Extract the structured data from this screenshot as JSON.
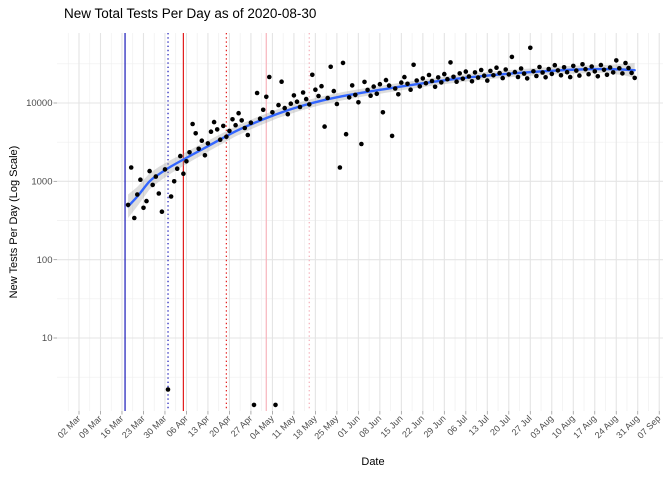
{
  "chart_data": {
    "type": "scatter",
    "title": "New Total Tests Per Day as of 2020-08-30",
    "xlabel": "Date",
    "ylabel": "New Tests Per Day (Log Scale)",
    "y_scale": "log",
    "grid": "on",
    "legend": "none",
    "colors": {
      "point": "#000000",
      "smooth_line": "#3366FF",
      "ribbon": "#9E9E9E",
      "grid_major": "#E4E4E4",
      "grid_minor": "#EFEFEF",
      "tick_mark": "#9B9B9B",
      "axis_text": "#4D4D4D",
      "title_text": "#000000"
    },
    "y_ticks": [
      {
        "label": "10",
        "value": 10
      },
      {
        "label": "100",
        "value": 100
      },
      {
        "label": "1000",
        "value": 1000
      },
      {
        "label": "10000",
        "value": 10000
      }
    ],
    "y_minor_values": [
      3.162,
      31.62,
      316.2,
      3162,
      31623
    ],
    "x_ticks": [
      {
        "label": "02 Mar",
        "date": "2020-03-02"
      },
      {
        "label": "09 Mar",
        "date": "2020-03-09"
      },
      {
        "label": "16 Mar",
        "date": "2020-03-16"
      },
      {
        "label": "23 Mar",
        "date": "2020-03-23"
      },
      {
        "label": "30 Mar",
        "date": "2020-03-30"
      },
      {
        "label": "06 Apr",
        "date": "2020-04-06"
      },
      {
        "label": "13 Apr",
        "date": "2020-04-13"
      },
      {
        "label": "20 Apr",
        "date": "2020-04-20"
      },
      {
        "label": "27 Apr",
        "date": "2020-04-27"
      },
      {
        "label": "04 May",
        "date": "2020-05-04"
      },
      {
        "label": "11 May",
        "date": "2020-05-11"
      },
      {
        "label": "18 May",
        "date": "2020-05-18"
      },
      {
        "label": "25 May",
        "date": "2020-05-25"
      },
      {
        "label": "01 Jun",
        "date": "2020-06-01"
      },
      {
        "label": "08 Jun",
        "date": "2020-06-08"
      },
      {
        "label": "15 Jun",
        "date": "2020-06-15"
      },
      {
        "label": "22 Jun",
        "date": "2020-06-22"
      },
      {
        "label": "29 Jun",
        "date": "2020-06-29"
      },
      {
        "label": "06 Jul",
        "date": "2020-07-06"
      },
      {
        "label": "13 Jul",
        "date": "2020-07-13"
      },
      {
        "label": "20 Jul",
        "date": "2020-07-20"
      },
      {
        "label": "27 Jul",
        "date": "2020-07-27"
      },
      {
        "label": "03 Aug",
        "date": "2020-08-03"
      },
      {
        "label": "10 Aug",
        "date": "2020-08-10"
      },
      {
        "label": "17 Aug",
        "date": "2020-08-17"
      },
      {
        "label": "24 Aug",
        "date": "2020-08-24"
      },
      {
        "label": "31 Aug",
        "date": "2020-08-31"
      },
      {
        "label": "07 Sep",
        "date": "2020-09-07"
      }
    ],
    "vlines": [
      {
        "date": "2020-03-17",
        "style": "solid",
        "color": "#1A1AB8"
      },
      {
        "date": "2020-03-31",
        "style": "dotted",
        "color": "#1A1AB8"
      },
      {
        "date": "2020-04-05",
        "style": "solid",
        "color": "#E21B1B"
      },
      {
        "date": "2020-04-19",
        "style": "dotted",
        "color": "#E21B1B"
      },
      {
        "date": "2020-05-02",
        "style": "solid",
        "color": "#F7B3BC"
      },
      {
        "date": "2020-05-16",
        "style": "dotted",
        "color": "#F4AEB8"
      }
    ],
    "smooth": {
      "dates": [
        "2020-03-18",
        "2020-03-21",
        "2020-03-25",
        "2020-03-28",
        "2020-04-01",
        "2020-04-08",
        "2020-04-15",
        "2020-04-22",
        "2020-04-29",
        "2020-05-06",
        "2020-05-13",
        "2020-05-20",
        "2020-05-27",
        "2020-06-03",
        "2020-06-10",
        "2020-06-17",
        "2020-06-24",
        "2020-07-01",
        "2020-07-08",
        "2020-07-15",
        "2020-07-22",
        "2020-07-29",
        "2020-08-05",
        "2020-08-12",
        "2020-08-19",
        "2020-08-26",
        "2020-08-30"
      ],
      "fit": [
        480,
        640,
        1000,
        1230,
        1550,
        2200,
        3100,
        4350,
        5750,
        7350,
        9050,
        10700,
        12250,
        13700,
        15150,
        16700,
        18300,
        19900,
        21400,
        22750,
        24000,
        25100,
        26100,
        26800,
        27100,
        26800,
        26200
      ],
      "lower": [
        340,
        480,
        790,
        990,
        1270,
        1850,
        2650,
        3750,
        5000,
        6450,
        7950,
        9450,
        10850,
        12200,
        13500,
        14900,
        16350,
        17800,
        19150,
        20400,
        21550,
        22500,
        23300,
        23800,
        24200,
        22800,
        21000
      ],
      "upper": [
        680,
        850,
        1270,
        1530,
        1890,
        2620,
        3630,
        5050,
        6600,
        8400,
        10300,
        12100,
        13800,
        15400,
        17000,
        18700,
        20500,
        22250,
        23900,
        25350,
        26700,
        28000,
        29200,
        30100,
        30300,
        31500,
        32500
      ]
    },
    "points": [
      [
        "2020-03-18",
        500
      ],
      [
        "2020-03-19",
        1500
      ],
      [
        "2020-03-20",
        340
      ],
      [
        "2020-03-21",
        680
      ],
      [
        "2020-03-22",
        1050
      ],
      [
        "2020-03-23",
        460
      ],
      [
        "2020-03-24",
        560
      ],
      [
        "2020-03-25",
        1350
      ],
      [
        "2020-03-26",
        900
      ],
      [
        "2020-03-27",
        1150
      ],
      [
        "2020-03-28",
        700
      ],
      [
        "2020-03-29",
        410
      ],
      [
        "2020-03-30",
        1420
      ],
      [
        "2020-03-31",
        2.2
      ],
      [
        "2020-04-01",
        640
      ],
      [
        "2020-04-02",
        1000
      ],
      [
        "2020-04-03",
        1450
      ],
      [
        "2020-04-04",
        2100
      ],
      [
        "2020-04-05",
        1250
      ],
      [
        "2020-04-06",
        1800
      ],
      [
        "2020-04-07",
        2350
      ],
      [
        "2020-04-08",
        5400
      ],
      [
        "2020-04-09",
        4100
      ],
      [
        "2020-04-10",
        2600
      ],
      [
        "2020-04-11",
        3300
      ],
      [
        "2020-04-12",
        2150
      ],
      [
        "2020-04-13",
        3050
      ],
      [
        "2020-04-14",
        4300
      ],
      [
        "2020-04-15",
        5700
      ],
      [
        "2020-04-16",
        4600
      ],
      [
        "2020-04-17",
        3400
      ],
      [
        "2020-04-18",
        5100
      ],
      [
        "2020-04-19",
        3700
      ],
      [
        "2020-04-20",
        4400
      ],
      [
        "2020-04-21",
        6200
      ],
      [
        "2020-04-22",
        5200
      ],
      [
        "2020-04-23",
        7400
      ],
      [
        "2020-04-24",
        6000
      ],
      [
        "2020-04-25",
        4800
      ],
      [
        "2020-04-26",
        3900
      ],
      [
        "2020-04-27",
        5600
      ],
      [
        "2020-04-28",
        1.4
      ],
      [
        "2020-04-29",
        13400
      ],
      [
        "2020-04-30",
        6300
      ],
      [
        "2020-05-01",
        8200
      ],
      [
        "2020-05-02",
        12000
      ],
      [
        "2020-05-03",
        21500
      ],
      [
        "2020-05-04",
        7600
      ],
      [
        "2020-05-05",
        1.4
      ],
      [
        "2020-05-06",
        9400
      ],
      [
        "2020-05-07",
        18700
      ],
      [
        "2020-05-08",
        8600
      ],
      [
        "2020-05-09",
        7200
      ],
      [
        "2020-05-10",
        9800
      ],
      [
        "2020-05-11",
        12500
      ],
      [
        "2020-05-12",
        10400
      ],
      [
        "2020-05-13",
        8900
      ],
      [
        "2020-05-14",
        13600
      ],
      [
        "2020-05-15",
        11200
      ],
      [
        "2020-05-16",
        9600
      ],
      [
        "2020-05-17",
        22900
      ],
      [
        "2020-05-18",
        14800
      ],
      [
        "2020-05-19",
        12300
      ],
      [
        "2020-05-20",
        16400
      ],
      [
        "2020-05-21",
        5000
      ],
      [
        "2020-05-22",
        11600
      ],
      [
        "2020-05-23",
        29000
      ],
      [
        "2020-05-24",
        14200
      ],
      [
        "2020-05-25",
        9700
      ],
      [
        "2020-05-26",
        1500
      ],
      [
        "2020-05-27",
        32500
      ],
      [
        "2020-05-28",
        4000
      ],
      [
        "2020-05-29",
        11800
      ],
      [
        "2020-05-30",
        16800
      ],
      [
        "2020-05-31",
        12700
      ],
      [
        "2020-06-01",
        10200
      ],
      [
        "2020-06-02",
        3000
      ],
      [
        "2020-06-03",
        18600
      ],
      [
        "2020-06-04",
        14700
      ],
      [
        "2020-06-05",
        12400
      ],
      [
        "2020-06-06",
        16200
      ],
      [
        "2020-06-07",
        13100
      ],
      [
        "2020-06-08",
        17400
      ],
      [
        "2020-06-09",
        7600
      ],
      [
        "2020-06-10",
        19600
      ],
      [
        "2020-06-11",
        16700
      ],
      [
        "2020-06-12",
        3800
      ],
      [
        "2020-06-13",
        15300
      ],
      [
        "2020-06-14",
        12900
      ],
      [
        "2020-06-15",
        18200
      ],
      [
        "2020-06-16",
        21400
      ],
      [
        "2020-06-17",
        17600
      ],
      [
        "2020-06-18",
        14800
      ],
      [
        "2020-06-19",
        30700
      ],
      [
        "2020-06-20",
        19400
      ],
      [
        "2020-06-21",
        16300
      ],
      [
        "2020-06-22",
        20600
      ],
      [
        "2020-06-23",
        17900
      ],
      [
        "2020-06-24",
        22800
      ],
      [
        "2020-06-25",
        19100
      ],
      [
        "2020-06-26",
        16100
      ],
      [
        "2020-06-27",
        21200
      ],
      [
        "2020-06-28",
        18300
      ],
      [
        "2020-06-29",
        23400
      ],
      [
        "2020-06-30",
        20100
      ],
      [
        "2020-07-01",
        33000
      ],
      [
        "2020-07-02",
        21600
      ],
      [
        "2020-07-03",
        18700
      ],
      [
        "2020-07-04",
        23900
      ],
      [
        "2020-07-05",
        20400
      ],
      [
        "2020-07-06",
        25200
      ],
      [
        "2020-07-07",
        21800
      ],
      [
        "2020-07-08",
        18900
      ],
      [
        "2020-07-09",
        24600
      ],
      [
        "2020-07-10",
        21100
      ],
      [
        "2020-07-11",
        26400
      ],
      [
        "2020-07-12",
        22300
      ],
      [
        "2020-07-13",
        19300
      ],
      [
        "2020-07-14",
        25700
      ],
      [
        "2020-07-15",
        22600
      ],
      [
        "2020-07-16",
        28200
      ],
      [
        "2020-07-17",
        24100
      ],
      [
        "2020-07-18",
        20800
      ],
      [
        "2020-07-19",
        26800
      ],
      [
        "2020-07-20",
        23200
      ],
      [
        "2020-07-21",
        38800
      ],
      [
        "2020-07-22",
        24800
      ],
      [
        "2020-07-23",
        21500
      ],
      [
        "2020-07-24",
        27600
      ],
      [
        "2020-07-25",
        23700
      ],
      [
        "2020-07-26",
        20600
      ],
      [
        "2020-07-27",
        50700
      ],
      [
        "2020-07-28",
        25400
      ],
      [
        "2020-07-29",
        22100
      ],
      [
        "2020-07-30",
        28800
      ],
      [
        "2020-07-31",
        24500
      ],
      [
        "2020-08-01",
        21300
      ],
      [
        "2020-08-02",
        27200
      ],
      [
        "2020-08-03",
        23500
      ],
      [
        "2020-08-04",
        30400
      ],
      [
        "2020-08-05",
        26100
      ],
      [
        "2020-08-06",
        22600
      ],
      [
        "2020-08-07",
        28600
      ],
      [
        "2020-08-08",
        24700
      ],
      [
        "2020-08-09",
        21400
      ],
      [
        "2020-08-10",
        29800
      ],
      [
        "2020-08-11",
        25900
      ],
      [
        "2020-08-12",
        22400
      ],
      [
        "2020-08-13",
        31200
      ],
      [
        "2020-08-14",
        27000
      ],
      [
        "2020-08-15",
        23300
      ],
      [
        "2020-08-16",
        29200
      ],
      [
        "2020-08-17",
        25300
      ],
      [
        "2020-08-18",
        21900
      ],
      [
        "2020-08-19",
        30600
      ],
      [
        "2020-08-20",
        26500
      ],
      [
        "2020-08-21",
        22900
      ],
      [
        "2020-08-22",
        28400
      ],
      [
        "2020-08-23",
        24600
      ],
      [
        "2020-08-24",
        35000
      ],
      [
        "2020-08-25",
        27700
      ],
      [
        "2020-08-26",
        23900
      ],
      [
        "2020-08-27",
        32400
      ],
      [
        "2020-08-28",
        28000
      ],
      [
        "2020-08-29",
        24200
      ],
      [
        "2020-08-30",
        20900
      ]
    ]
  }
}
